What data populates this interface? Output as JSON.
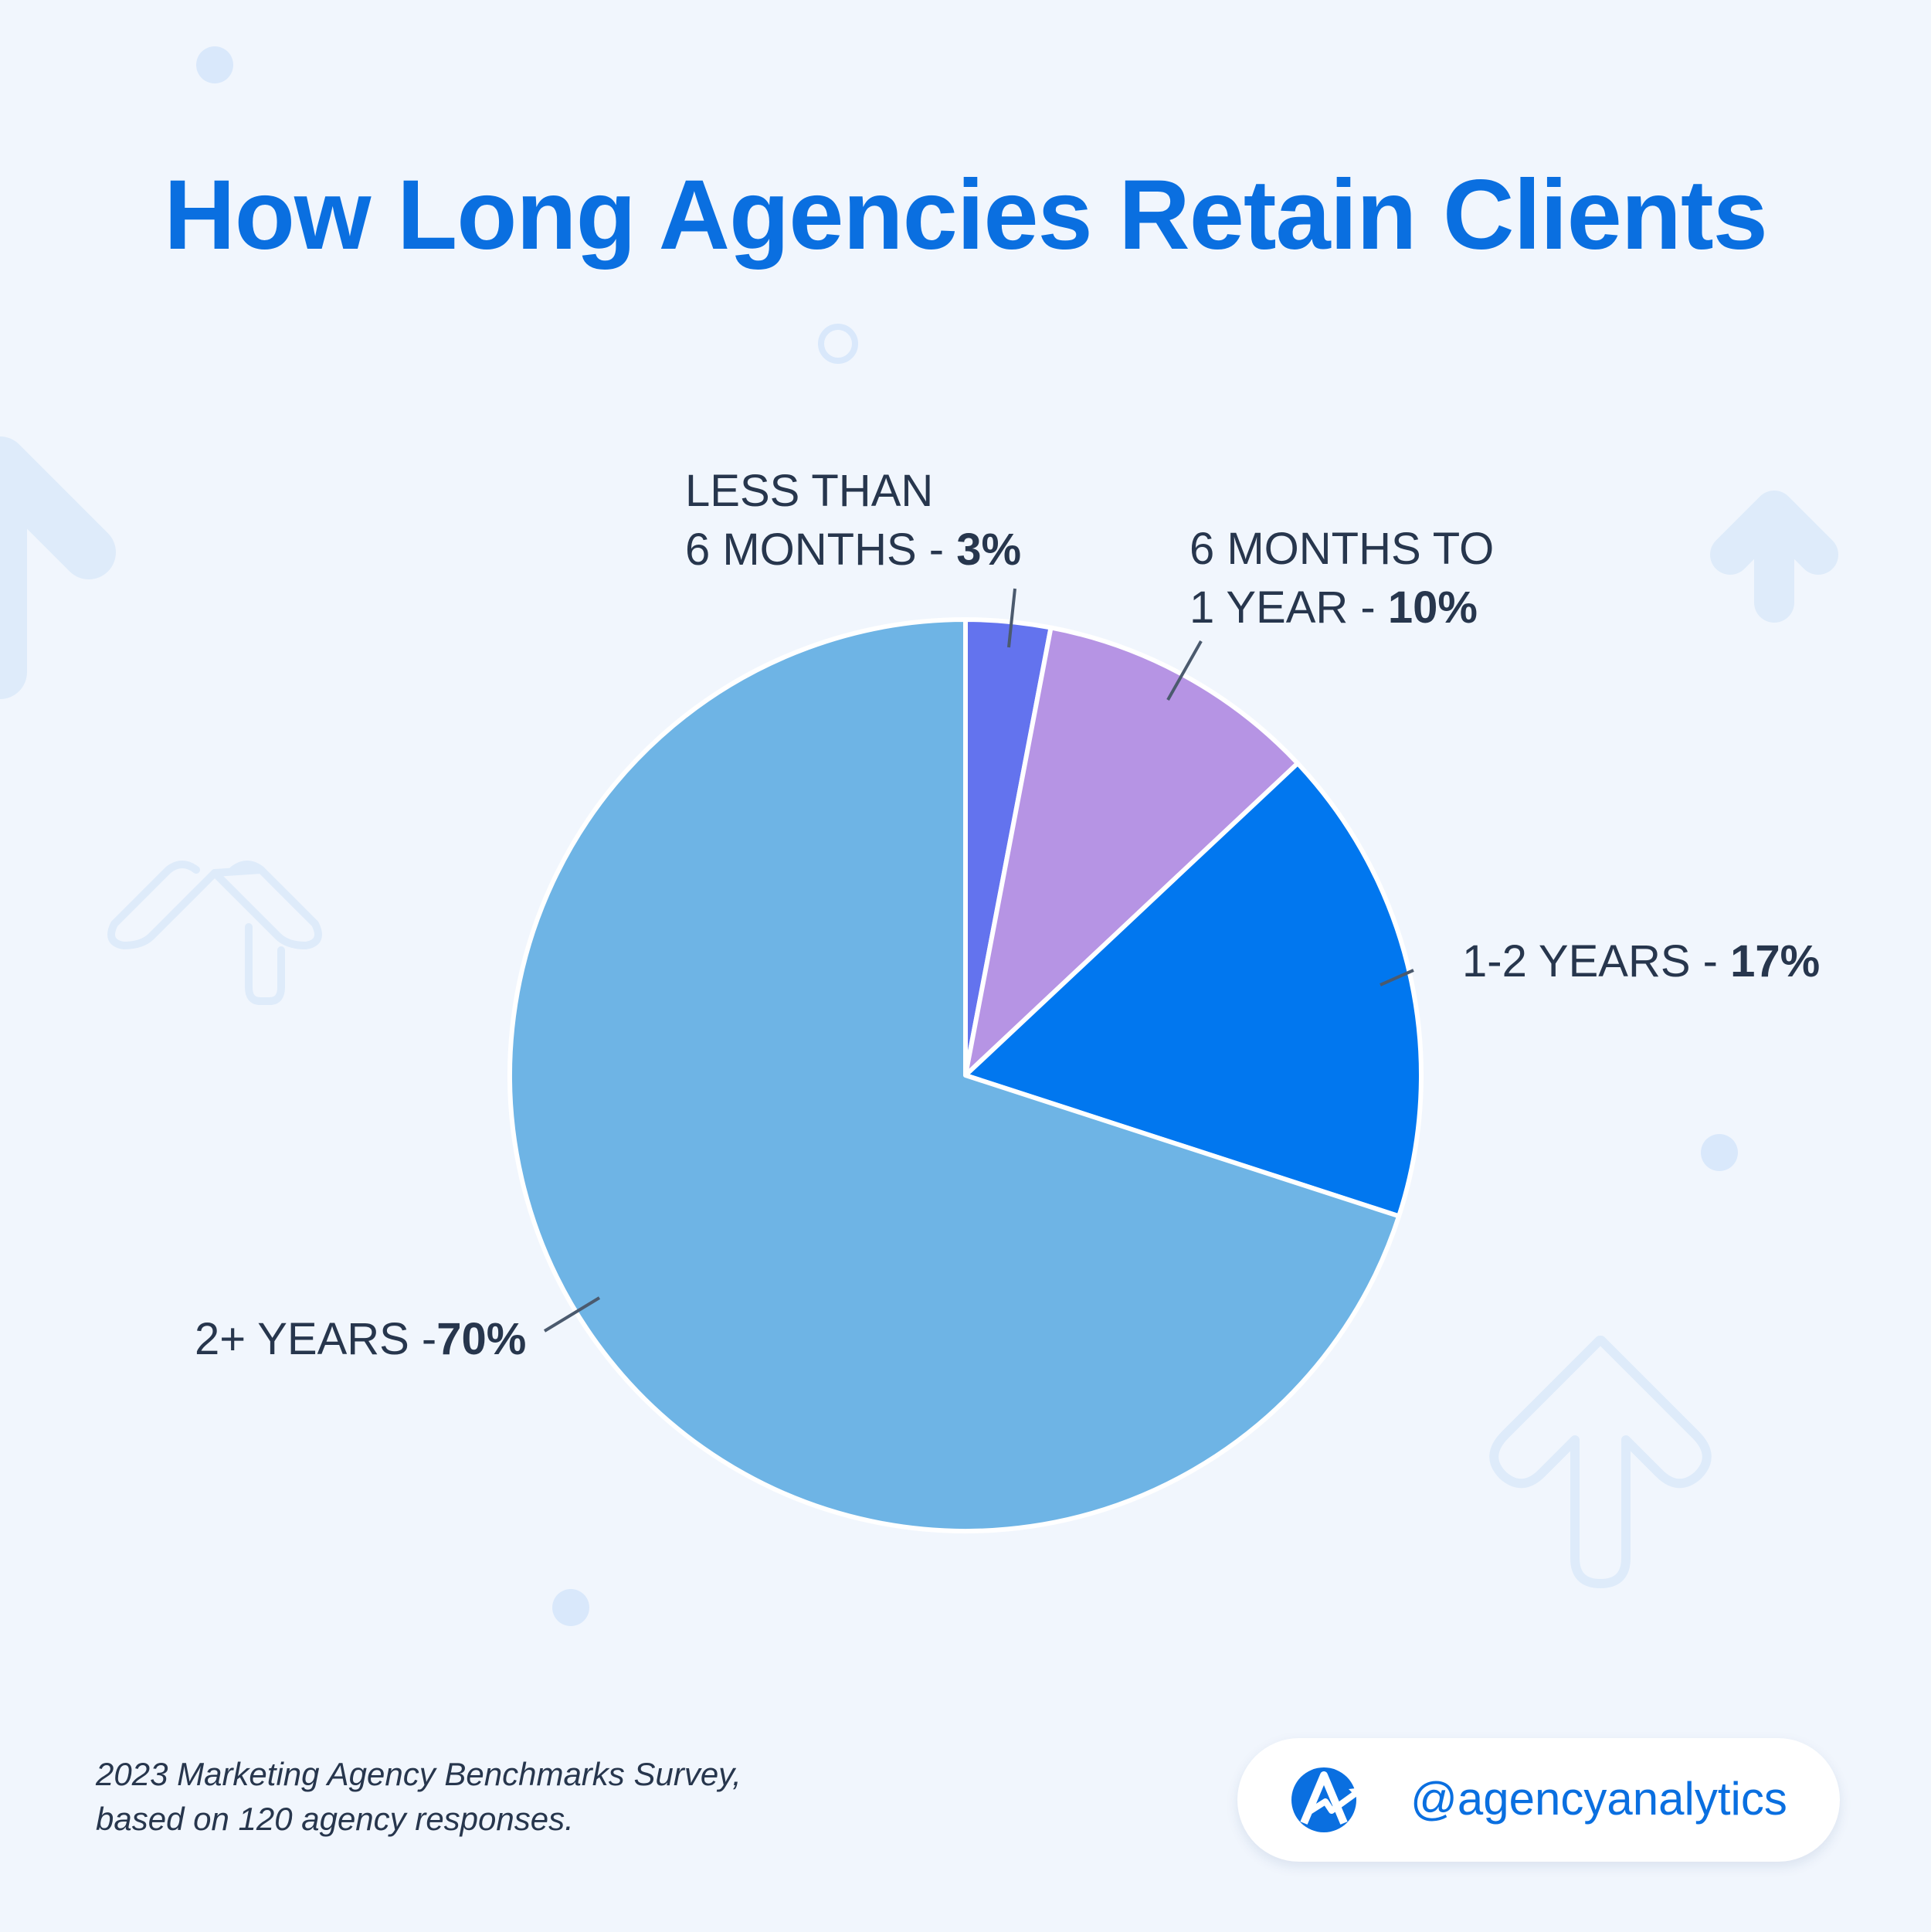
{
  "header": {
    "title": "How Long Agencies Retain Clients"
  },
  "chart_data": {
    "type": "pie",
    "title": "How Long Agencies Retain Clients",
    "slices": [
      {
        "name": "LESS THAN 6 MONTHS",
        "value": 3,
        "display": "3%",
        "color": "#6373ee"
      },
      {
        "name": "6 MONTHS TO 1 YEAR",
        "value": 10,
        "display": "10%",
        "color": "#b694e4"
      },
      {
        "name": "1-2 YEARS",
        "value": 17,
        "display": "17%",
        "color": "#0177ef"
      },
      {
        "name": "2+ YEARS",
        "value": 70,
        "display": "70%",
        "color": "#6eb4e5"
      }
    ]
  },
  "labels": {
    "less_6": {
      "line1": "LESS THAN",
      "line2": "6 MONTHS - ",
      "value": "3%"
    },
    "m6_1y": {
      "line1": "6 MONTHS TO",
      "line2": "1 YEAR - ",
      "value": "10%"
    },
    "y1_2": {
      "line1": "1-2 YEARS - ",
      "value": "17%"
    },
    "y2plus": {
      "line1": "2+ YEARS -",
      "value": "70%"
    }
  },
  "footer": {
    "note_line1": "2023 Marketing Agency Benchmarks Survey,",
    "note_line2": "based on 120 agency responses.",
    "handle": "@agencyanalytics"
  },
  "colors": {
    "accent": "#0a6fe0",
    "background": "#f1f6fd",
    "text": "#27364d"
  },
  "icons": [
    "arrow-up-icon",
    "agencyanalytics-logo-icon"
  ]
}
